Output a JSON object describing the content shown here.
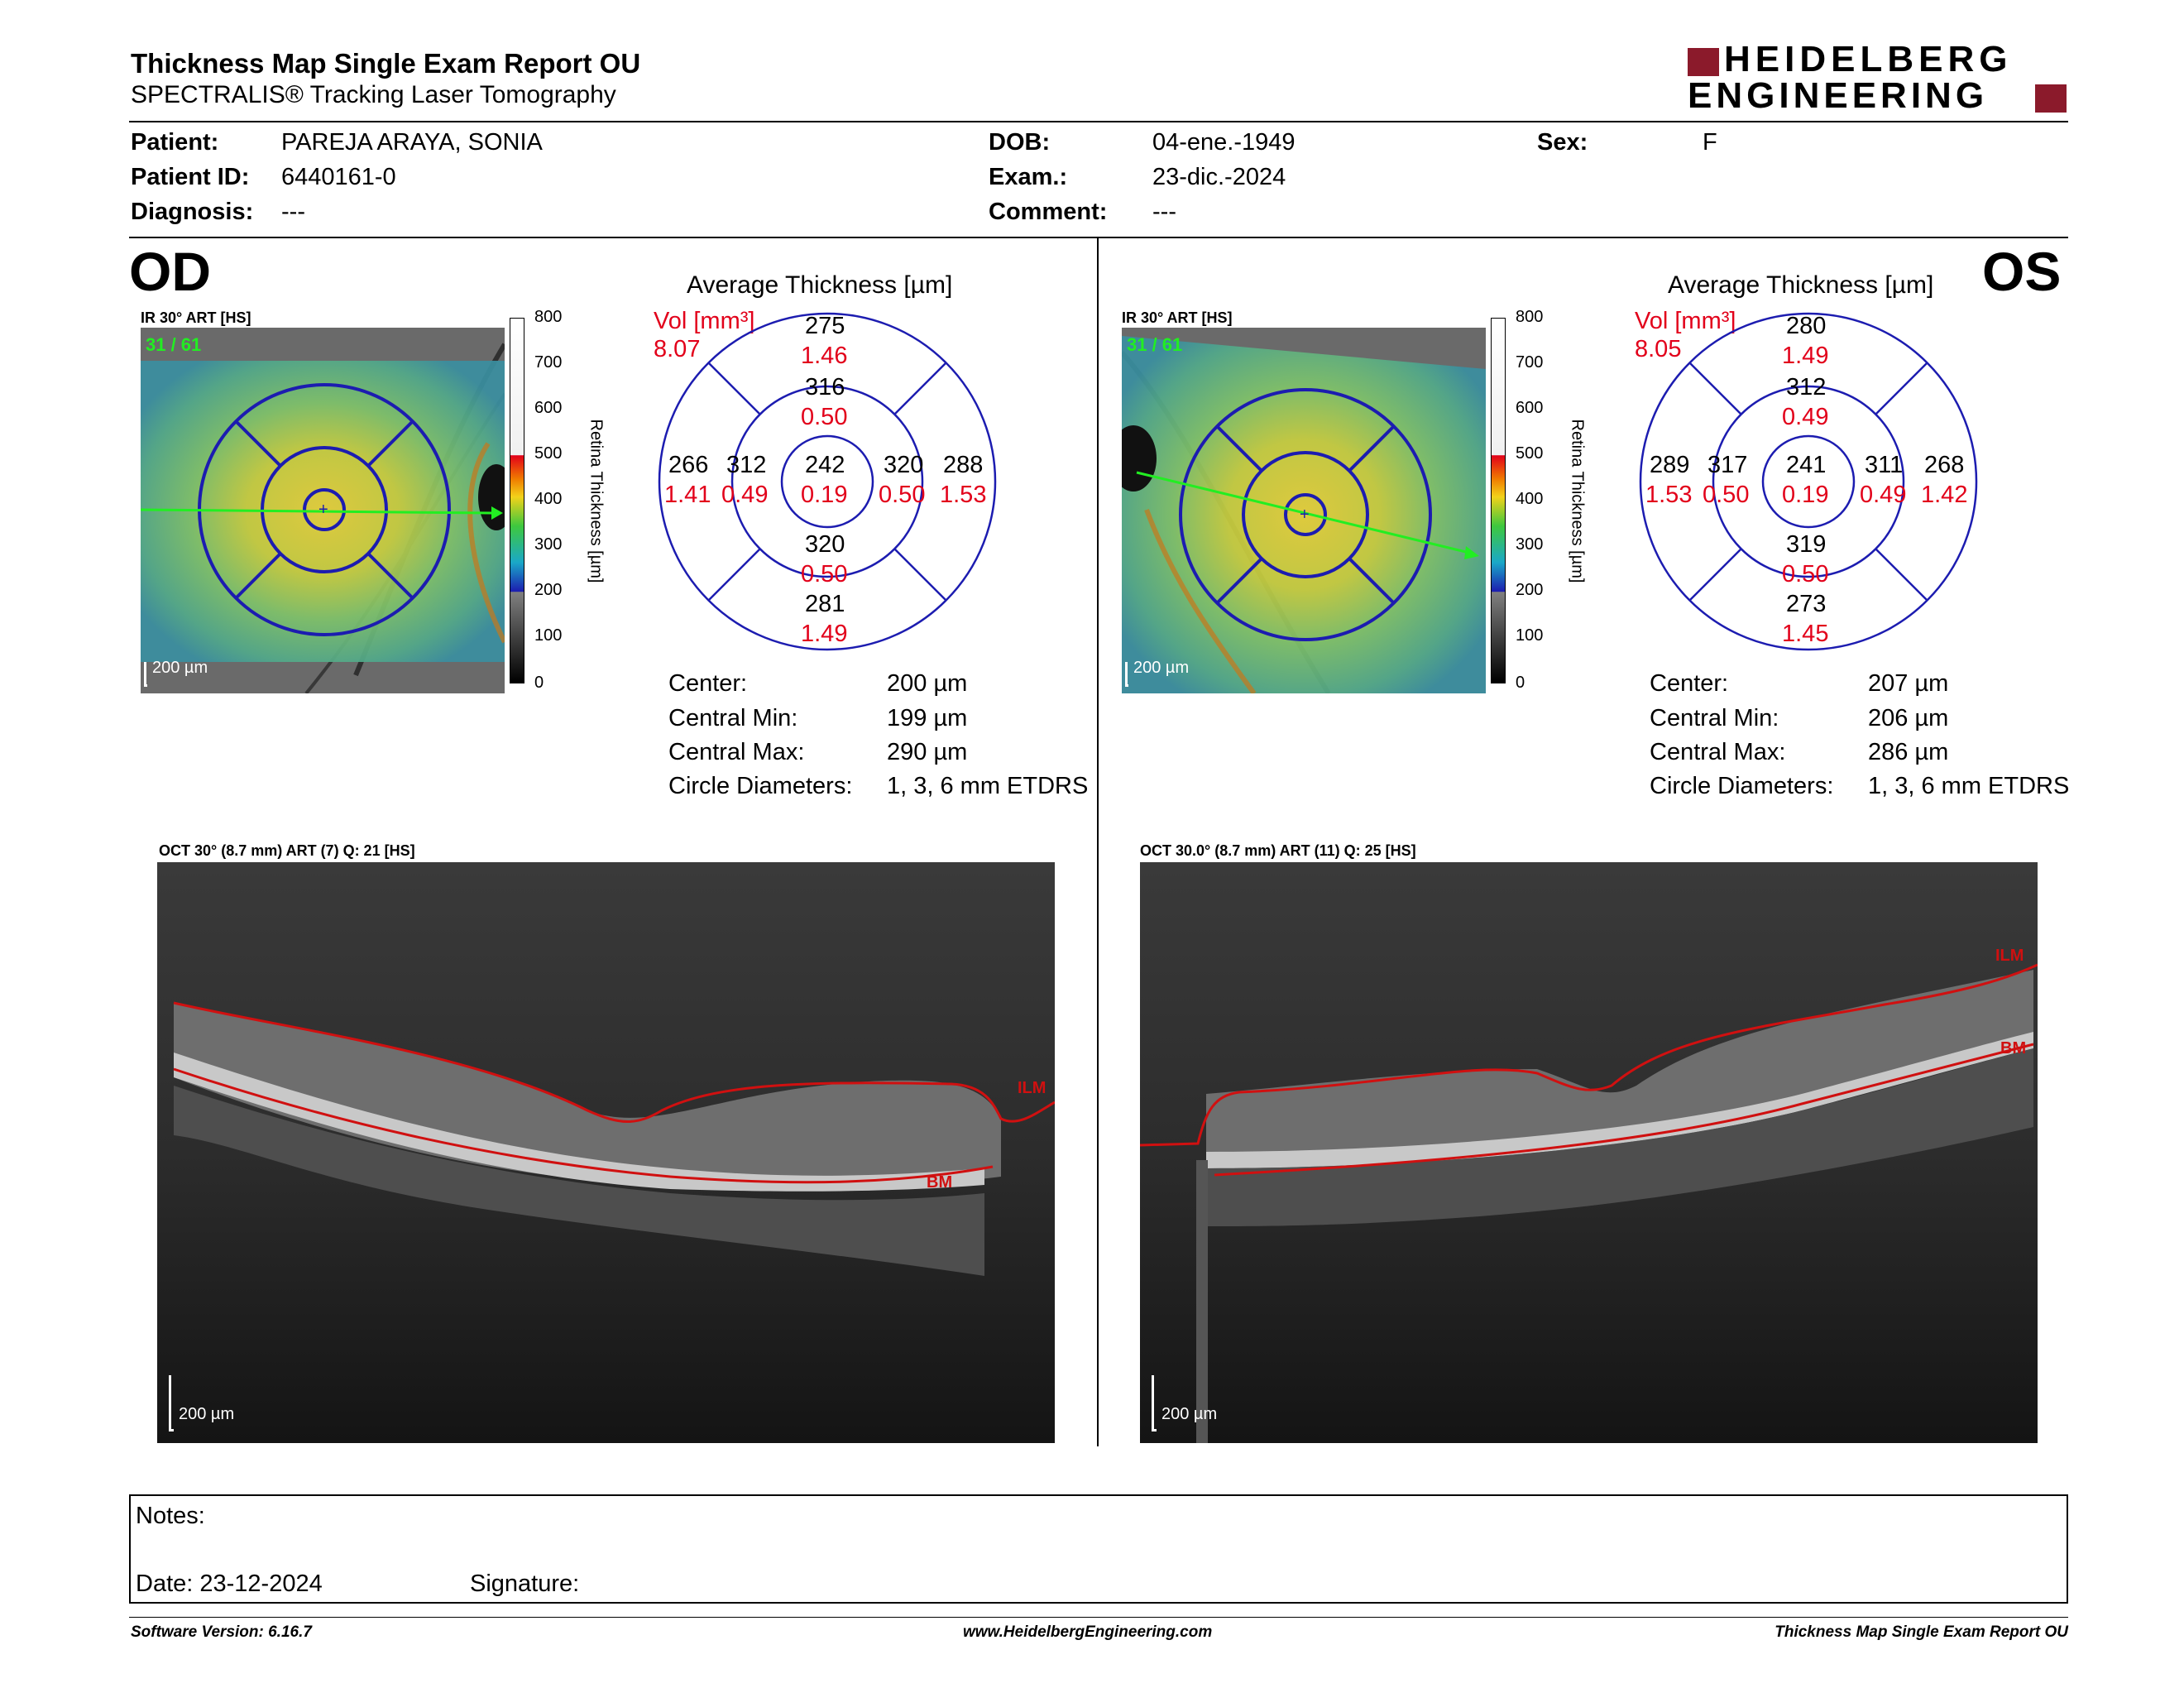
{
  "header": {
    "title": "Thickness Map Single Exam Report OU",
    "subtitle": "SPECTRALIS® Tracking Laser Tomography",
    "logo_line1": "HEIDELBERG",
    "logo_line2": "ENGINEERING"
  },
  "patient": {
    "patient_label": "Patient:",
    "patient_value": "PAREJA ARAYA, SONIA",
    "id_label": "Patient ID:",
    "id_value": "6440161-0",
    "diagnosis_label": "Diagnosis:",
    "diagnosis_value": "---",
    "dob_label": "DOB:",
    "dob_value": "04-ene.-1949",
    "exam_label": "Exam.:",
    "exam_value": "23-dic.-2024",
    "comment_label": "Comment:",
    "comment_value": "---",
    "sex_label": "Sex:",
    "sex_value": "F"
  },
  "colorbar": {
    "ticks": [
      "800",
      "700",
      "600",
      "500",
      "400",
      "300",
      "200",
      "100",
      "0"
    ],
    "label": "Retina Thickness [µm]"
  },
  "od": {
    "eye": "OD",
    "ir_title": "IR 30° ART [HS]",
    "ir_overlay": "31 / 61",
    "ir_scale": "200 µm",
    "avg_title": "Average Thickness [µm]",
    "vol_label": "Vol [mm³]",
    "vol_value": "8.07",
    "etdrs": {
      "center": {
        "thickness": "242",
        "volume": "0.19"
      },
      "inner_superior": {
        "thickness": "316",
        "volume": "0.50"
      },
      "inner_inferior": {
        "thickness": "320",
        "volume": "0.50"
      },
      "inner_nasal_side_left": {
        "thickness": "312",
        "volume": "0.49"
      },
      "inner_right": {
        "thickness": "320",
        "volume": "0.50"
      },
      "outer_superior": {
        "thickness": "275",
        "volume": "1.46"
      },
      "outer_inferior": {
        "thickness": "281",
        "volume": "1.49"
      },
      "outer_left": {
        "thickness": "266",
        "volume": "1.41"
      },
      "outer_right": {
        "thickness": "288",
        "volume": "1.53"
      }
    },
    "stats": {
      "center_label": "Center:",
      "center_value": "200 µm",
      "min_label": "Central Min:",
      "min_value": "199 µm",
      "max_label": "Central Max:",
      "max_value": "290 µm",
      "diam_label": "Circle Diameters:",
      "diam_value": "1, 3, 6 mm ETDRS"
    },
    "oct_title": "OCT 30° (8.7 mm) ART (7) Q: 21 [HS]",
    "oct_scale": "200 µm",
    "ilm_label": "ILM",
    "bm_label": "BM"
  },
  "os": {
    "eye": "OS",
    "ir_title": "IR 30° ART [HS]",
    "ir_overlay": "31 / 61",
    "ir_scale": "200 µm",
    "avg_title": "Average Thickness [µm]",
    "vol_label": "Vol [mm³]",
    "vol_value": "8.05",
    "etdrs": {
      "center": {
        "thickness": "241",
        "volume": "0.19"
      },
      "inner_superior": {
        "thickness": "312",
        "volume": "0.49"
      },
      "inner_inferior": {
        "thickness": "319",
        "volume": "0.50"
      },
      "inner_left": {
        "thickness": "317",
        "volume": "0.50"
      },
      "inner_right": {
        "thickness": "311",
        "volume": "0.49"
      },
      "outer_superior": {
        "thickness": "280",
        "volume": "1.49"
      },
      "outer_inferior": {
        "thickness": "273",
        "volume": "1.45"
      },
      "outer_left": {
        "thickness": "289",
        "volume": "1.53"
      },
      "outer_right": {
        "thickness": "268",
        "volume": "1.42"
      }
    },
    "stats": {
      "center_label": "Center:",
      "center_value": "207 µm",
      "min_label": "Central Min:",
      "min_value": "206 µm",
      "max_label": "Central Max:",
      "max_value": "286 µm",
      "diam_label": "Circle Diameters:",
      "diam_value": "1, 3, 6 mm ETDRS"
    },
    "oct_title": "OCT 30.0° (8.7 mm) ART (11) Q: 25 [HS]",
    "oct_scale": "200 µm",
    "ilm_label": "ILM",
    "bm_label": "BM"
  },
  "notes": {
    "notes_label": "Notes:",
    "date_label": "Date: 23-12-2024",
    "signature_label": "Signature:"
  },
  "footer": {
    "version": "Software Version: 6.16.7",
    "website": "www.HeidelbergEngineering.com",
    "report_name": "Thickness Map Single Exam Report OU"
  },
  "colors": {
    "brand_red": "#8b1a2b",
    "volume_red": "#e2001a",
    "etdrs_blue": "#1c1cb0",
    "layer_line_red": "#d01010",
    "scan_line_green": "#22ee22"
  }
}
